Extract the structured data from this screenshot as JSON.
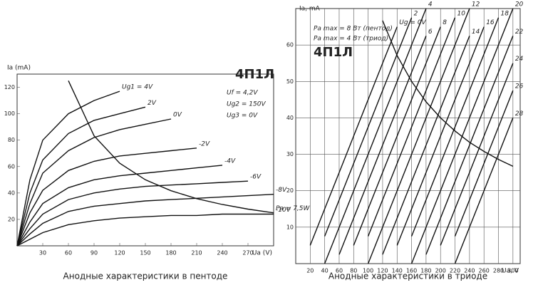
{
  "chart_data": [
    {
      "type": "line",
      "caption": "Анодные характеристики в пентоде",
      "ylabel": "Ia (mA)",
      "xlabel": "Ua (V)",
      "annotations": [
        "4П1Л",
        "Uf = 4,2V",
        "Ug2 = 150V",
        "Ug3 = 0V"
      ],
      "x": [
        0,
        15,
        30,
        60,
        90,
        120,
        150,
        180,
        210,
        240,
        270,
        300
      ],
      "xlim": [
        0,
        300
      ],
      "ylim": [
        0,
        130
      ],
      "xticks": [
        30,
        60,
        90,
        120,
        150,
        180,
        210,
        240,
        270
      ],
      "yticks": [
        20,
        40,
        60,
        80,
        100,
        120
      ],
      "grid": false,
      "series": [
        {
          "name": "Ug1 = 4V",
          "color": "#111",
          "values": [
            0,
            50,
            80,
            100,
            110,
            117,
            null,
            null,
            null,
            null,
            null,
            null
          ]
        },
        {
          "name": "2V",
          "color": "#111",
          "values": [
            0,
            40,
            65,
            85,
            95,
            100,
            105,
            null,
            null,
            null,
            null,
            null
          ]
        },
        {
          "name": "0V",
          "color": "#111",
          "values": [
            0,
            32,
            55,
            72,
            82,
            88,
            92,
            96,
            null,
            null,
            null,
            null
          ]
        },
        {
          "name": "-2V",
          "color": "#111",
          "values": [
            0,
            25,
            42,
            57,
            64,
            68,
            70,
            72,
            74,
            null,
            null,
            null
          ]
        },
        {
          "name": "-4V",
          "color": "#111",
          "values": [
            0,
            18,
            32,
            44,
            50,
            53,
            55,
            57,
            59,
            61,
            null,
            null
          ]
        },
        {
          "name": "-6V",
          "color": "#111",
          "values": [
            0,
            13,
            24,
            35,
            40,
            43,
            45,
            46,
            47,
            48,
            49,
            null
          ]
        },
        {
          "name": "-8V",
          "color": "#111",
          "values": [
            0,
            9,
            17,
            26,
            30,
            32,
            34,
            35,
            36,
            37,
            38,
            39
          ]
        },
        {
          "name": "-10V",
          "color": "#111",
          "values": [
            0,
            5,
            10,
            16,
            19,
            21,
            22,
            23,
            23,
            24,
            24,
            24
          ]
        },
        {
          "name": "Pa = 7,5W",
          "color": "#111",
          "values": [
            null,
            null,
            null,
            125,
            83.3,
            62.5,
            50,
            41.7,
            35.7,
            31.3,
            27.8,
            25
          ]
        }
      ]
    },
    {
      "type": "line",
      "caption": "Анодные характеристики в триоде",
      "ylabel": "Ia, mA",
      "xlabel": "Ua, V",
      "annotations": [
        "Pa max = 8 Вт (пентод)",
        "Pa max = 4 Вт (триод)",
        "4П1Л"
      ],
      "x": [
        0,
        20,
        40,
        60,
        80,
        100,
        120,
        140,
        160,
        180,
        200,
        220,
        240,
        260,
        280,
        300
      ],
      "xlim": [
        0,
        310
      ],
      "ylim": [
        0,
        70
      ],
      "xticks": [
        20,
        40,
        60,
        80,
        100,
        120,
        140,
        160,
        180,
        200,
        220,
        240,
        260,
        280,
        300
      ],
      "yticks": [
        10,
        20,
        30,
        40,
        50,
        60
      ],
      "grid": true,
      "series": [
        {
          "name": "Ug = 0V",
          "color": "#111",
          "values": [
            null,
            5,
            15,
            25,
            35,
            45,
            55,
            65,
            null,
            null,
            null,
            null,
            null,
            null,
            null,
            null
          ]
        },
        {
          "name": "2",
          "color": "#111",
          "values": [
            null,
            null,
            7.5,
            17.5,
            27.5,
            37.5,
            47.5,
            57.5,
            67.5,
            null,
            null,
            null,
            null,
            null,
            null,
            null
          ]
        },
        {
          "name": "4",
          "color": "#111",
          "values": [
            null,
            null,
            0,
            10,
            20,
            30,
            40,
            50,
            60,
            70,
            null,
            null,
            null,
            null,
            null,
            null
          ]
        },
        {
          "name": "6",
          "color": "#111",
          "values": [
            null,
            null,
            null,
            2.5,
            12.5,
            22.5,
            32.5,
            42.5,
            52.5,
            62.5,
            null,
            null,
            null,
            null,
            null,
            null
          ]
        },
        {
          "name": "8",
          "color": "#111",
          "values": [
            null,
            null,
            null,
            null,
            5,
            15,
            25,
            35,
            45,
            55,
            65,
            null,
            null,
            null,
            null,
            null
          ]
        },
        {
          "name": "10",
          "color": "#111",
          "values": [
            null,
            null,
            null,
            null,
            null,
            7.5,
            17.5,
            27.5,
            37.5,
            47.5,
            57.5,
            67.5,
            null,
            null,
            null,
            null
          ]
        },
        {
          "name": "12",
          "color": "#111",
          "values": [
            null,
            null,
            null,
            null,
            null,
            0,
            10,
            20,
            30,
            40,
            50,
            60,
            70,
            null,
            null,
            null
          ]
        },
        {
          "name": "14",
          "color": "#111",
          "values": [
            null,
            null,
            null,
            null,
            null,
            null,
            2.5,
            12.5,
            22.5,
            32.5,
            42.5,
            52.5,
            62.5,
            null,
            null,
            null
          ]
        },
        {
          "name": "16",
          "color": "#111",
          "values": [
            null,
            null,
            null,
            null,
            null,
            null,
            null,
            5,
            15,
            25,
            35,
            45,
            55,
            65,
            null,
            null
          ]
        },
        {
          "name": "18",
          "color": "#111",
          "values": [
            null,
            null,
            null,
            null,
            null,
            null,
            null,
            null,
            7.5,
            17.5,
            27.5,
            37.5,
            47.5,
            57.5,
            67.5,
            null
          ]
        },
        {
          "name": "20",
          "color": "#111",
          "values": [
            null,
            null,
            null,
            null,
            null,
            null,
            null,
            null,
            0,
            10,
            20,
            30,
            40,
            50,
            60,
            70
          ]
        },
        {
          "name": "22",
          "color": "#111",
          "values": [
            null,
            null,
            null,
            null,
            null,
            null,
            null,
            null,
            null,
            2.5,
            12.5,
            22.5,
            32.5,
            42.5,
            52.5,
            62.5
          ]
        },
        {
          "name": "24",
          "color": "#111",
          "values": [
            null,
            null,
            null,
            null,
            null,
            null,
            null,
            null,
            null,
            null,
            5,
            15,
            25,
            35,
            45,
            55
          ]
        },
        {
          "name": "26",
          "color": "#111",
          "values": [
            null,
            null,
            null,
            null,
            null,
            null,
            null,
            null,
            null,
            null,
            null,
            7.5,
            17.5,
            27.5,
            37.5,
            47.5
          ]
        },
        {
          "name": "28",
          "color": "#111",
          "values": [
            null,
            null,
            null,
            null,
            null,
            null,
            null,
            null,
            null,
            null,
            null,
            0,
            10,
            20,
            30,
            40
          ]
        },
        {
          "color": "#111",
          "values": [
            null,
            null,
            null,
            null,
            null,
            null,
            66.7,
            57.1,
            50,
            44.4,
            40,
            36.4,
            33.3,
            30.8,
            28.6,
            26.7
          ]
        }
      ]
    }
  ]
}
